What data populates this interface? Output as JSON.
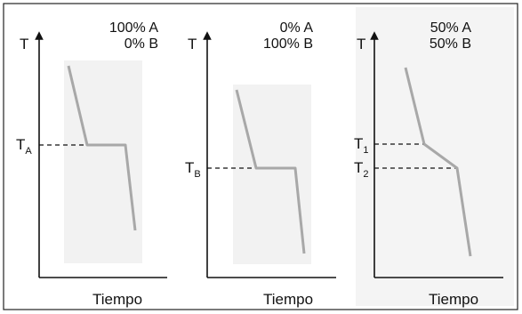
{
  "panels": [
    {
      "composition": [
        "100% A",
        "0% B"
      ],
      "y_label": "T",
      "x_label": "Tiempo",
      "plateau_label": "T_A",
      "plateau_label_main": "T",
      "plateau_label_sub": "A"
    },
    {
      "composition": [
        "0% A",
        "100% B"
      ],
      "y_label": "T",
      "x_label": "Tiempo",
      "plateau_label": "T_B",
      "plateau_label_main": "T",
      "plateau_label_sub": "B"
    },
    {
      "composition": [
        "50% A",
        "50% B"
      ],
      "y_label": "T",
      "x_label": "Tiempo",
      "break_labels": [
        {
          "main": "T",
          "sub": "1"
        },
        {
          "main": "T",
          "sub": "2"
        }
      ]
    }
  ],
  "colors": {
    "curve": "#a8a8a8",
    "axis": "#111111",
    "panel_shade": "#f1f1f1",
    "frame": "#222222"
  }
}
